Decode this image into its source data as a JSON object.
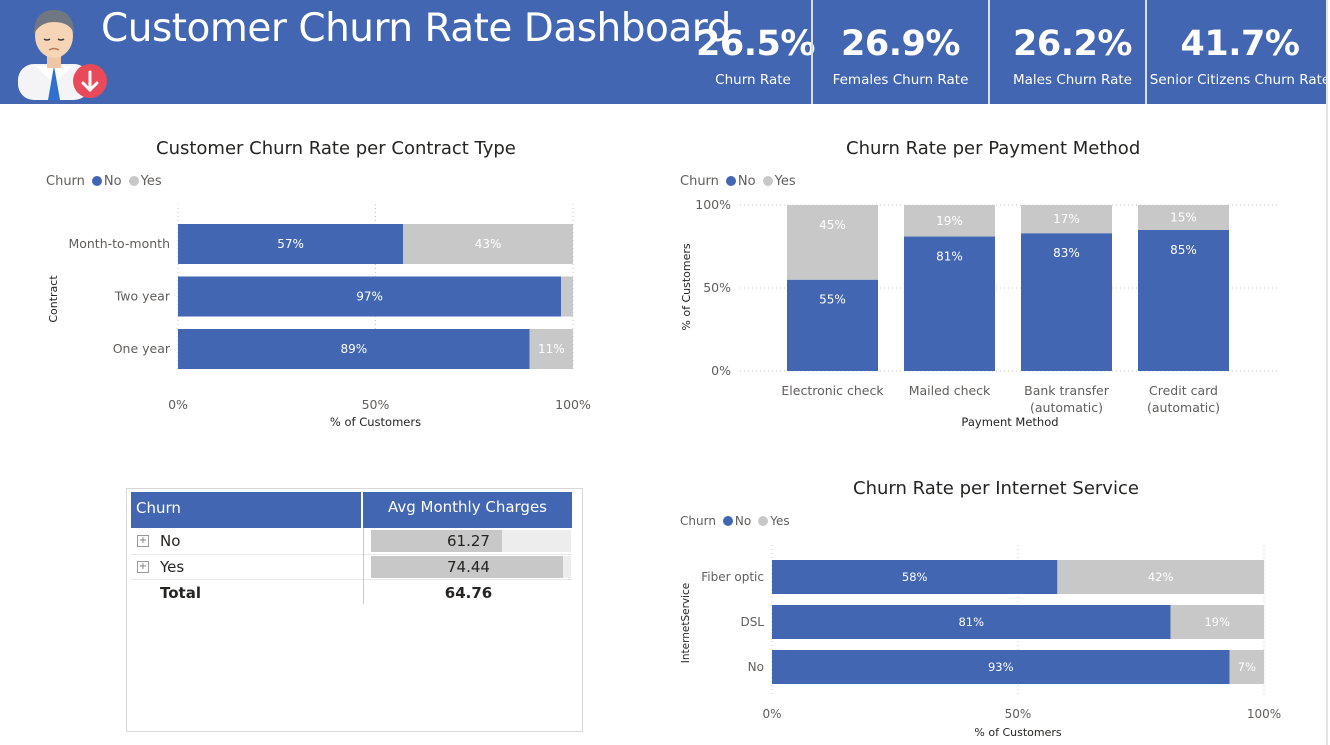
{
  "header": {
    "title": "Customer Churn Rate Dashboard",
    "kpis": [
      {
        "value": "26.5%",
        "label": "Churn Rate"
      },
      {
        "value": "26.9%",
        "label": "Females Churn Rate"
      },
      {
        "value": "26.2%",
        "label": "Males Churn Rate"
      },
      {
        "value": "41.7%",
        "label": "Senior Citizens Churn Rate"
      }
    ]
  },
  "colors": {
    "header": "#4266b1",
    "no": "#4266b1",
    "yes": "#c8c8c8"
  },
  "legend": {
    "title": "Churn",
    "no": "No",
    "yes": "Yes"
  },
  "table": {
    "headers": [
      "Churn",
      "Avg Monthly Charges"
    ],
    "rows": [
      {
        "label": "No",
        "value": "61.27",
        "raw": 61.27
      },
      {
        "label": "Yes",
        "value": "74.44",
        "raw": 74.44
      }
    ],
    "total": {
      "label": "Total",
      "value": "64.76"
    }
  },
  "chart_data": [
    {
      "type": "bar",
      "orientation": "horizontal-stacked-100",
      "title": "Customer Churn Rate per Contract Type",
      "categories": [
        "Month-to-month",
        "Two year",
        "One year"
      ],
      "series": [
        {
          "name": "No",
          "values": [
            57,
            97,
            89
          ],
          "labels": [
            "57%",
            "97%",
            "89%"
          ]
        },
        {
          "name": "Yes",
          "values": [
            43,
            3,
            11
          ],
          "labels": [
            "43%",
            "",
            "11%"
          ]
        }
      ],
      "xlabel": "% of Customers",
      "ylabel": "Contract",
      "xticks": [
        "0%",
        "50%",
        "100%"
      ],
      "xlim": [
        0,
        100
      ]
    },
    {
      "type": "bar",
      "orientation": "vertical-stacked-100",
      "title": "Churn Rate per Payment Method",
      "categories": [
        [
          "Electronic check"
        ],
        [
          "Mailed check"
        ],
        [
          "Bank transfer",
          "(automatic)"
        ],
        [
          "Credit card",
          "(automatic)"
        ]
      ],
      "series": [
        {
          "name": "No",
          "values": [
            55,
            81,
            83,
            85
          ],
          "labels": [
            "55%",
            "81%",
            "83%",
            "85%"
          ]
        },
        {
          "name": "Yes",
          "values": [
            45,
            19,
            17,
            15
          ],
          "labels": [
            "45%",
            "19%",
            "17%",
            "15%"
          ]
        }
      ],
      "xlabel": "Payment Method",
      "ylabel": "% of Customers",
      "yticks": [
        "0%",
        "50%",
        "100%"
      ],
      "ylim": [
        0,
        100
      ]
    },
    {
      "type": "bar",
      "orientation": "horizontal-stacked-100",
      "title": "Churn Rate per Internet Service",
      "categories": [
        "Fiber optic",
        "DSL",
        "No"
      ],
      "series": [
        {
          "name": "No",
          "values": [
            58,
            81,
            93
          ],
          "labels": [
            "58%",
            "81%",
            "93%"
          ]
        },
        {
          "name": "Yes",
          "values": [
            42,
            19,
            7
          ],
          "labels": [
            "42%",
            "19%",
            "7%"
          ]
        }
      ],
      "xlabel": "% of Customers",
      "ylabel": "InternetService",
      "xticks": [
        "0%",
        "50%",
        "100%"
      ],
      "xlim": [
        0,
        100
      ]
    }
  ]
}
